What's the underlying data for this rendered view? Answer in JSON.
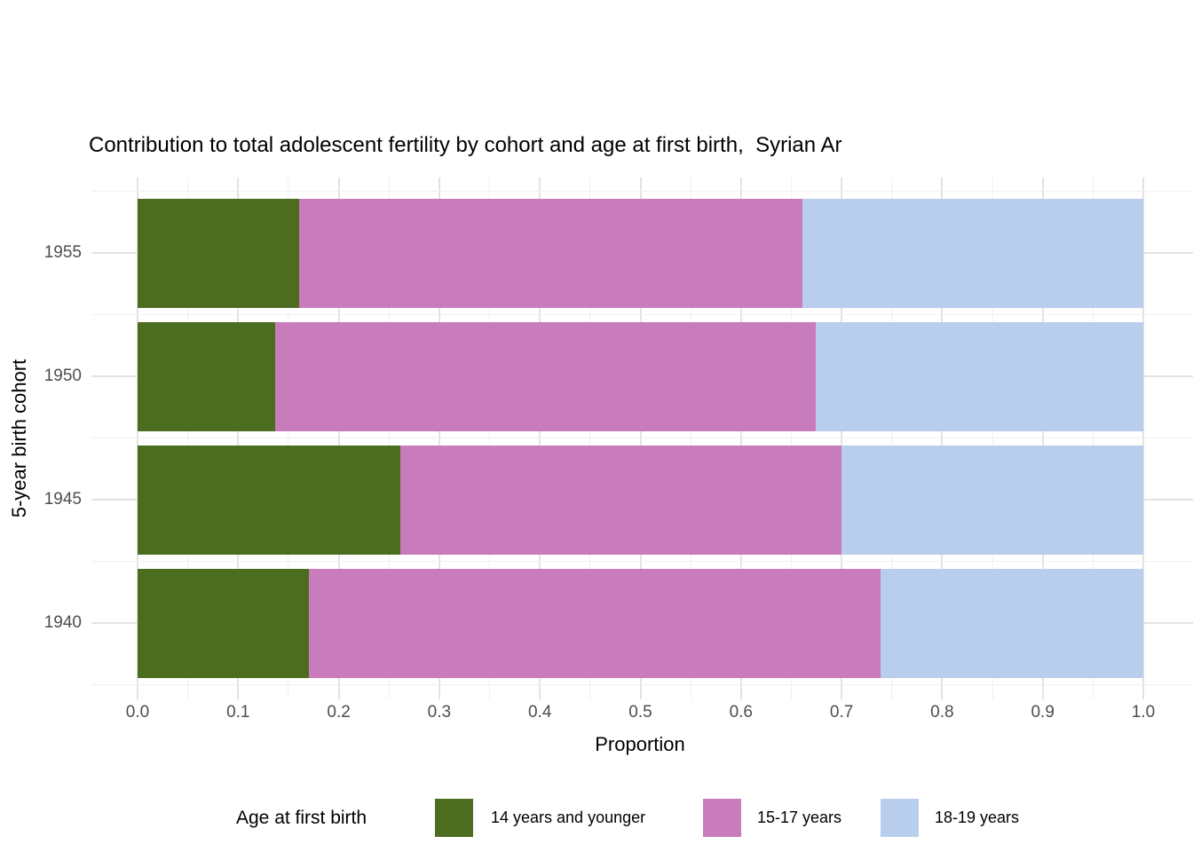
{
  "title": "Contribution to total adolescent fertility by cohort and age at first birth,  Syrian Ar",
  "x_axis": {
    "label": "Proportion",
    "ticks": [
      "0.0",
      "0.1",
      "0.2",
      "0.3",
      "0.4",
      "0.5",
      "0.6",
      "0.7",
      "0.8",
      "0.9",
      "1.0"
    ]
  },
  "y_axis": {
    "label": "5-year birth cohort",
    "ticks": [
      "1955",
      "1950",
      "1945",
      "1940"
    ]
  },
  "legend": {
    "title": "Age at first birth",
    "entries": [
      {
        "label": "14 years and younger",
        "color": "#4c6c20"
      },
      {
        "label": "15-17 years",
        "color": "#c87cbb"
      },
      {
        "label": "18-19 years",
        "color": "#b8ceec"
      }
    ]
  },
  "colors": {
    "background": "#ffffff",
    "grid_major": "#e3e3e3",
    "grid_minor": "#f0f0f0",
    "axis_text": "#4d4d4d",
    "title_text": "#000000",
    "green": "#4c6c20",
    "pink": "#c87cbb",
    "blue": "#b8ceec"
  },
  "chart_data": {
    "type": "bar",
    "orientation": "horizontal",
    "stacked": true,
    "title": "Contribution to total adolescent fertility by cohort and age at first birth,  Syrian Ar",
    "xlabel": "Proportion",
    "ylabel": "5-year birth cohort",
    "xlim": [
      0.0,
      1.0
    ],
    "grid": "white panel, light gray major gridlines every 0.1 with minor gridlines every 0.05",
    "legend_position": "bottom",
    "legend_title": "Age at first birth",
    "categories": [
      "1955",
      "1950",
      "1945",
      "1940"
    ],
    "series": [
      {
        "name": "14 years and younger",
        "color": "#4c6c20",
        "values": [
          0.161,
          0.137,
          0.261,
          0.17
        ]
      },
      {
        "name": "15-17 years",
        "color": "#c87cbb",
        "values": [
          0.5,
          0.537,
          0.439,
          0.569
        ]
      },
      {
        "name": "18-19 years",
        "color": "#b8ceec",
        "values": [
          0.339,
          0.326,
          0.3,
          0.261
        ]
      }
    ]
  }
}
